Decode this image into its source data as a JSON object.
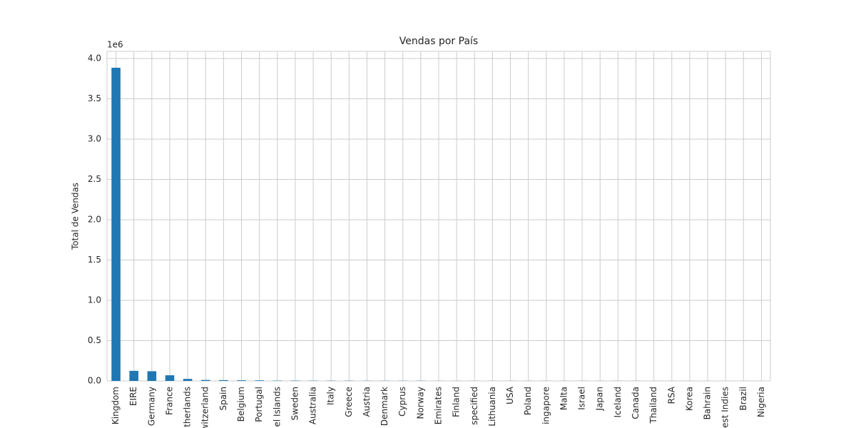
{
  "chart_data": {
    "type": "bar",
    "title": "Vendas por País",
    "y_label": "Total de Vendas",
    "y_offset_label": "1e6",
    "categories": [
      "Kingdom",
      "EIRE",
      "Germany",
      "France",
      "therlands",
      "witzerland",
      "Spain",
      "Belgium",
      "Portugal",
      "el Islands",
      "Sweden",
      "Australia",
      "Italy",
      "Greece",
      "Austria",
      "Denmark",
      "Cyprus",
      "Norway",
      "Emirates",
      "Finland",
      "specified",
      "Lithuania",
      "USA",
      "Poland",
      "ingapore",
      "Malta",
      "Israel",
      "Japan",
      "Iceland",
      "Canada",
      "Thailand",
      "RSA",
      "Korea",
      "Bahrain",
      "est Indies",
      "Brazil",
      "Nigeria"
    ],
    "values": [
      3.885,
      0.125,
      0.12,
      0.07,
      0.025,
      0.012,
      0.01,
      0.008,
      0.007,
      0.004,
      0.004,
      0.003,
      0.003,
      0.003,
      0.002,
      0.002,
      0.002,
      0.002,
      0.001,
      0.001,
      0.001,
      0.001,
      0.001,
      0.001,
      0.001,
      0.001,
      0.001,
      0.001,
      0.001,
      0.001,
      0.0005,
      0.0005,
      0.0005,
      0.0003,
      0.0003,
      0.0003,
      0.0001
    ],
    "color": "#1f77b4",
    "ylim": [
      0,
      4.088
    ],
    "yticks": [
      {
        "value": 0,
        "label": "0.0"
      },
      {
        "value": 0.5,
        "label": "0.5"
      },
      {
        "value": 1,
        "label": "1.0"
      },
      {
        "value": 1.5,
        "label": "1.5"
      },
      {
        "value": 2,
        "label": "2.0"
      },
      {
        "value": 2.5,
        "label": "2.5"
      },
      {
        "value": 3,
        "label": "3.0"
      },
      {
        "value": 3.5,
        "label": "3.5"
      },
      {
        "value": 4,
        "label": "4.0"
      }
    ],
    "grid": true
  }
}
